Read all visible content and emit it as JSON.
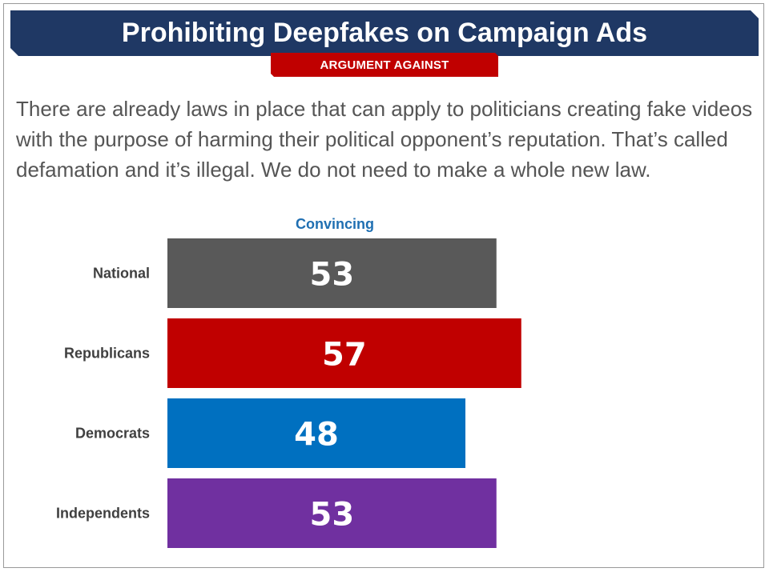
{
  "slide": {
    "title": "Prohibiting Deepfakes on Campaign Ads",
    "subtitle": "ARGUMENT AGAINST",
    "body": "There are already laws in place that can apply to politicians creating fake videos with the purpose of harming their political opponent’s reputation. That’s called defamation and it’s illegal. We do not need to make a whole new law.",
    "colors": {
      "title_band": "#1f3864",
      "subtitle_band": "#c00000",
      "column_header": "#1f6fb2"
    }
  },
  "chart_data": {
    "type": "bar",
    "orientation": "horizontal",
    "column_header": "Convincing",
    "categories": [
      "National",
      "Republicans",
      "Democrats",
      "Independents"
    ],
    "values": [
      53,
      57,
      48,
      53
    ],
    "colors": [
      "#595959",
      "#c00000",
      "#0070c0",
      "#7030a0"
    ],
    "xlim": [
      0,
      100
    ],
    "grid": false,
    "legend": "none"
  }
}
